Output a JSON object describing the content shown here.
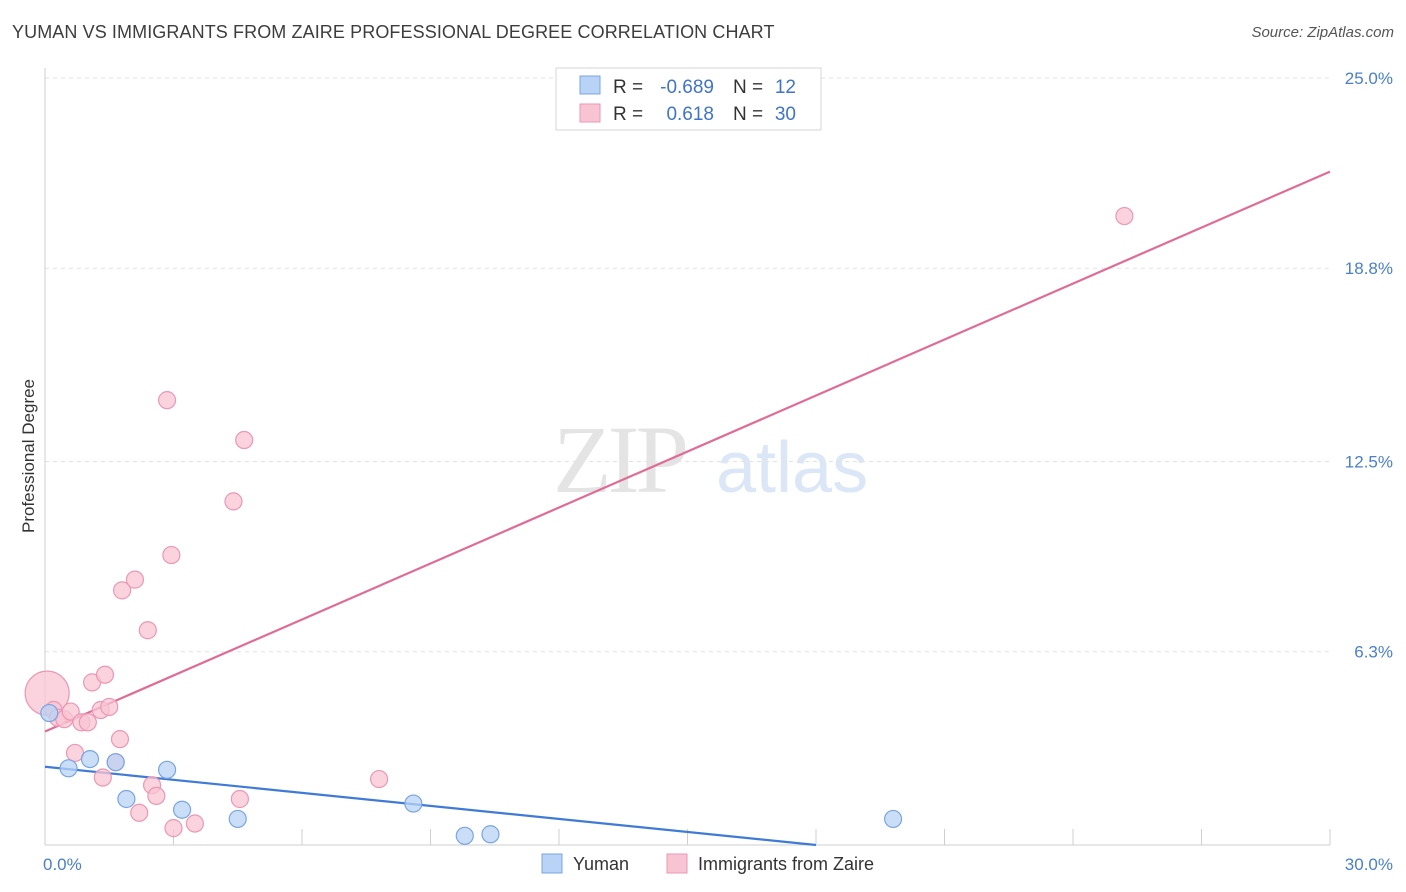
{
  "title": "YUMAN VS IMMIGRANTS FROM ZAIRE PROFESSIONAL DEGREE CORRELATION CHART",
  "source": "Source: ZipAtlas.com",
  "watermark": {
    "zip": "ZIP",
    "atlas": "atlas"
  },
  "colors": {
    "yuman_fill": "#b8d3f5",
    "yuman_stroke": "#7aa5e0",
    "yuman_line": "#3f7bd6",
    "zaire_fill": "#f8c4d4",
    "zaire_stroke": "#ec97b3",
    "zaire_line": "#e06c96",
    "grid": "#e3e3e3",
    "tick_text": "#4a7fc9"
  },
  "legend": {
    "rows": [
      {
        "r_label": "R =",
        "r_value": "-0.689",
        "n_label": "N =",
        "n_value": "12"
      },
      {
        "r_label": "R =",
        "r_value": "0.618",
        "n_label": "N =",
        "n_value": "30"
      }
    ]
  },
  "chart_data": {
    "type": "scatter",
    "title": "YUMAN VS IMMIGRANTS FROM ZAIRE PROFESSIONAL DEGREE CORRELATION CHART",
    "ylabel": "Professional Degree",
    "xlabel": "",
    "xlim": [
      0,
      30
    ],
    "ylim": [
      0,
      25
    ],
    "x_tick_labels": [
      {
        "value": 0,
        "label": "0.0%"
      },
      {
        "value": 30,
        "label": "30.0%"
      }
    ],
    "y_tick_labels": [
      {
        "value": 6.3,
        "label": "6.3%"
      },
      {
        "value": 12.5,
        "label": "12.5%"
      },
      {
        "value": 18.8,
        "label": "18.8%"
      },
      {
        "value": 25.0,
        "label": "25.0%"
      }
    ],
    "series": [
      {
        "name": "Yuman",
        "points": [
          [
            0.1,
            4.3
          ],
          [
            0.55,
            2.5
          ],
          [
            1.05,
            2.8
          ],
          [
            1.65,
            2.7
          ],
          [
            1.9,
            1.5
          ],
          [
            2.85,
            2.45
          ],
          [
            3.2,
            1.15
          ],
          [
            4.5,
            0.85
          ],
          [
            8.6,
            1.35
          ],
          [
            9.8,
            0.3
          ],
          [
            10.4,
            0.35
          ],
          [
            19.8,
            0.85
          ]
        ],
        "trend": {
          "x": [
            0,
            18
          ],
          "y": [
            2.55,
            0.0
          ]
        }
      },
      {
        "name": "Immigrants from Zaire",
        "points": [
          [
            0.05,
            4.95
          ],
          [
            0.2,
            4.4
          ],
          [
            0.3,
            4.15
          ],
          [
            0.45,
            4.1
          ],
          [
            0.6,
            4.35
          ],
          [
            0.7,
            3.0
          ],
          [
            0.85,
            4.0
          ],
          [
            1.0,
            4.0
          ],
          [
            1.1,
            5.3
          ],
          [
            1.3,
            4.4
          ],
          [
            1.35,
            2.2
          ],
          [
            1.4,
            5.55
          ],
          [
            1.5,
            4.5
          ],
          [
            1.65,
            2.7
          ],
          [
            1.75,
            3.45
          ],
          [
            1.8,
            8.3
          ],
          [
            2.1,
            8.65
          ],
          [
            2.2,
            1.05
          ],
          [
            2.4,
            7.0
          ],
          [
            2.5,
            1.95
          ],
          [
            2.6,
            1.6
          ],
          [
            2.85,
            14.5
          ],
          [
            2.95,
            9.45
          ],
          [
            3.0,
            0.55
          ],
          [
            3.5,
            0.7
          ],
          [
            4.4,
            11.2
          ],
          [
            4.55,
            1.5
          ],
          [
            4.65,
            13.2
          ],
          [
            7.8,
            2.15
          ],
          [
            25.2,
            20.5
          ]
        ],
        "trend": {
          "x": [
            0,
            30
          ],
          "y": [
            3.7,
            21.95
          ]
        }
      }
    ],
    "grid": true,
    "legend_position": "top-center"
  },
  "bottom_legend": [
    {
      "label": "Yuman"
    },
    {
      "label": "Immigrants from Zaire"
    }
  ]
}
